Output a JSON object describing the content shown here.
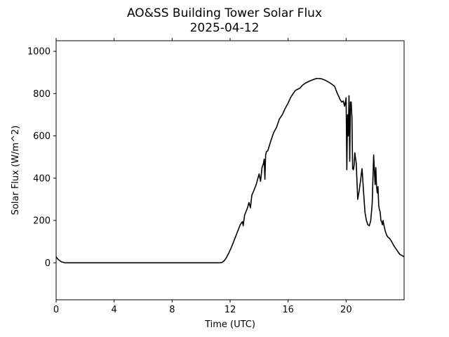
{
  "chart_data": {
    "type": "line",
    "title": "AO&SS Building Tower Solar Flux",
    "subtitle": "2025-04-12",
    "xlabel": "Time (UTC)",
    "ylabel": "Solar Flux (W/m^2)",
    "xlim": [
      0,
      24
    ],
    "ylim": [
      -175,
      1050
    ],
    "x_ticks": [
      0,
      4,
      8,
      12,
      16,
      20
    ],
    "x_tick_labels": [
      "0",
      "4",
      "8",
      "12",
      "16",
      "20"
    ],
    "y_ticks": [
      0,
      200,
      400,
      600,
      800,
      1000
    ],
    "y_tick_labels": [
      "0",
      "200",
      "400",
      "600",
      "800",
      "1000"
    ],
    "grid": false,
    "legend": "none",
    "series": [
      {
        "color": "#000000",
        "x": [
          0,
          0.15,
          0.35,
          0.6,
          1,
          2,
          4,
          6,
          8,
          10,
          11,
          11.3,
          11.45,
          11.6,
          11.75,
          11.9,
          12.1,
          12.3,
          12.5,
          12.7,
          12.85,
          12.9,
          13.0,
          13.2,
          13.3,
          13.4,
          13.5,
          13.6,
          13.8,
          13.9,
          14.0,
          14.1,
          14.2,
          14.3,
          14.35,
          14.4,
          14.45,
          14.5,
          14.6,
          14.8,
          15.0,
          15.2,
          15.4,
          15.6,
          15.8,
          16.0,
          16.2,
          16.5,
          16.8,
          17.0,
          17.2,
          17.5,
          17.8,
          18.0,
          18.3,
          18.6,
          18.9,
          19.2,
          19.4,
          19.5,
          19.6,
          19.7,
          19.8,
          19.9,
          20.0,
          20.05,
          20.1,
          20.15,
          20.2,
          20.25,
          20.3,
          20.35,
          20.4,
          20.45,
          20.5,
          20.55,
          20.6,
          20.7,
          20.8,
          20.85,
          20.9,
          21.0,
          21.05,
          21.1,
          21.2,
          21.3,
          21.4,
          21.45,
          21.5,
          21.6,
          21.7,
          21.8,
          21.9,
          22.0,
          22.05,
          22.1,
          22.15,
          22.2,
          22.25,
          22.3,
          22.35,
          22.4,
          22.45,
          22.5,
          22.55,
          22.6,
          22.7,
          22.8,
          22.9,
          23.0,
          23.1,
          23.3,
          23.5,
          23.7,
          24.0
        ],
        "y": [
          28,
          15,
          5,
          0,
          0,
          0,
          0,
          0,
          0,
          0,
          0,
          0,
          2,
          10,
          25,
          45,
          75,
          110,
          145,
          180,
          195,
          175,
          225,
          260,
          285,
          260,
          320,
          335,
          370,
          395,
          420,
          385,
          450,
          470,
          490,
          395,
          510,
          525,
          530,
          575,
          615,
          640,
          680,
          700,
          730,
          755,
          785,
          815,
          825,
          840,
          850,
          860,
          868,
          872,
          870,
          862,
          850,
          835,
          800,
          785,
          770,
          760,
          765,
          740,
          780,
          440,
          700,
          600,
          790,
          480,
          760,
          760,
          690,
          445,
          440,
          460,
          520,
          470,
          300,
          320,
          340,
          390,
          420,
          445,
          340,
          240,
          200,
          190,
          180,
          175,
          200,
          280,
          510,
          370,
          450,
          360,
          330,
          360,
          270,
          250,
          240,
          200,
          195,
          180,
          200,
          180,
          150,
          130,
          120,
          115,
          105,
          80,
          60,
          40,
          28
        ]
      }
    ]
  }
}
